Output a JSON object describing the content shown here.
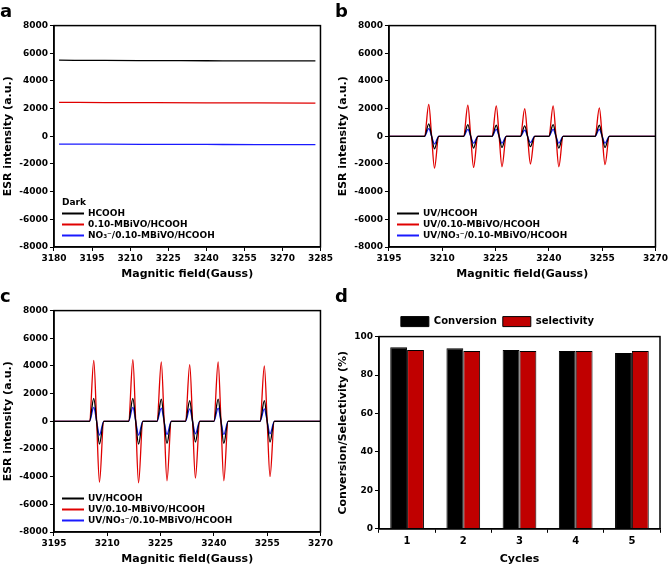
{
  "chart_data": [
    {
      "type": "line",
      "title": "a",
      "x_label": "Magnitic field(Gauss)",
      "y_label": "ESR intensity (a.u.)",
      "legend_title": "Dark",
      "legend": "lower left",
      "grid": false,
      "xlim": [
        3180,
        3285
      ],
      "xticks": [
        3180,
        3195,
        3210,
        3225,
        3240,
        3255,
        3270,
        3285
      ],
      "ylim": [
        -8000,
        8000
      ],
      "yticks": [
        -8000,
        -6000,
        -4000,
        -2000,
        0,
        2000,
        4000,
        6000,
        8000
      ],
      "x": [
        3182,
        3200,
        3220,
        3240,
        3260,
        3283
      ],
      "series": [
        {
          "name": "HCOOH",
          "color": "#000000",
          "values": [
            5500,
            5480,
            5470,
            5460,
            5450,
            5450
          ]
        },
        {
          "name": "0.10-MBiVO/HCOOH",
          "color": "#e00000",
          "values": [
            2450,
            2440,
            2430,
            2420,
            2410,
            2400
          ]
        },
        {
          "name": "NO₃⁻/0.10-MBiVO/HCOOH",
          "color": "#1a1aff",
          "values": [
            -560,
            -570,
            -580,
            -590,
            -600,
            -600
          ]
        }
      ]
    },
    {
      "type": "line",
      "title": "b",
      "x_label": "Magnitic field(Gauss)",
      "y_label": "ESR intensity (a.u.)",
      "legend": "lower left",
      "grid": false,
      "xlim": [
        3195,
        3270
      ],
      "xticks": [
        3195,
        3210,
        3225,
        3240,
        3255,
        3270
      ],
      "ylim": [
        -8000,
        8000
      ],
      "yticks": [
        -8000,
        -6000,
        -4000,
        -2000,
        0,
        2000,
        4000,
        6000,
        8000
      ],
      "x": [
        3195,
        3205,
        3206.2,
        3207,
        3207.8,
        3209,
        3216,
        3217.2,
        3218,
        3218.8,
        3220,
        3224,
        3225.2,
        3226,
        3226.8,
        3228,
        3232,
        3233.2,
        3234,
        3234.8,
        3236,
        3240,
        3241.2,
        3242,
        3242.8,
        3244,
        3253,
        3254.2,
        3255,
        3255.8,
        3257,
        3270
      ],
      "series": [
        {
          "name": "UV/HCOOH",
          "color": "#000000",
          "values": [
            0,
            0,
            900,
            0,
            -900,
            0,
            0,
            850,
            0,
            -850,
            0,
            0,
            800,
            0,
            -800,
            0,
            0,
            750,
            0,
            -750,
            0,
            0,
            850,
            0,
            -850,
            0,
            0,
            800,
            0,
            -800,
            0,
            0
          ]
        },
        {
          "name": "UV/0.10-MBiVO/HCOOH",
          "color": "#e00000",
          "values": [
            0,
            0,
            2300,
            0,
            -2300,
            0,
            0,
            2250,
            0,
            -2250,
            0,
            0,
            2200,
            0,
            -2200,
            0,
            0,
            2000,
            0,
            -2000,
            0,
            0,
            2200,
            0,
            -2200,
            0,
            0,
            2050,
            0,
            -2050,
            0,
            0
          ]
        },
        {
          "name": "UV/NO₃⁻/0.10-MBiVO/HCOOH",
          "color": "#1a1aff",
          "values": [
            0,
            0,
            550,
            0,
            -550,
            0,
            0,
            500,
            0,
            -500,
            0,
            0,
            500,
            0,
            -500,
            0,
            0,
            450,
            0,
            -450,
            0,
            0,
            500,
            0,
            -500,
            0,
            0,
            500,
            0,
            -500,
            0,
            0
          ]
        }
      ]
    },
    {
      "type": "line",
      "title": "c",
      "x_label": "Magnitic field(Gauss)",
      "y_label": "ESR intensity (a.u.)",
      "legend": "lower left",
      "grid": false,
      "xlim": [
        3195,
        3270
      ],
      "xticks": [
        3195,
        3210,
        3225,
        3240,
        3255,
        3270
      ],
      "ylim": [
        -8000,
        8000
      ],
      "yticks": [
        -8000,
        -6000,
        -4000,
        -2000,
        0,
        2000,
        4000,
        6000,
        8000
      ],
      "x": [
        3195,
        3205,
        3206.2,
        3207,
        3207.8,
        3209,
        3216,
        3217.2,
        3218,
        3218.8,
        3220,
        3224,
        3225.2,
        3226,
        3226.8,
        3228,
        3232,
        3233.2,
        3234,
        3234.8,
        3236,
        3240,
        3241.2,
        3242,
        3242.8,
        3244,
        3253,
        3254.2,
        3255,
        3255.8,
        3257,
        3270
      ],
      "series": [
        {
          "name": "UV/HCOOH",
          "color": "#000000",
          "values": [
            0,
            0,
            1650,
            0,
            -1650,
            0,
            0,
            1650,
            0,
            -1650,
            0,
            0,
            1600,
            0,
            -1600,
            0,
            0,
            1500,
            0,
            -1500,
            0,
            0,
            1600,
            0,
            -1600,
            0,
            0,
            1500,
            0,
            -1500,
            0,
            0
          ]
        },
        {
          "name": "UV/0.10-MBiVO/HCOOH",
          "color": "#e00000",
          "values": [
            0,
            0,
            4400,
            0,
            -4400,
            0,
            0,
            4450,
            0,
            -4450,
            0,
            0,
            4300,
            0,
            -4300,
            0,
            0,
            4100,
            0,
            -4100,
            0,
            0,
            4300,
            0,
            -4300,
            0,
            0,
            4000,
            0,
            -4000,
            0,
            0
          ]
        },
        {
          "name": "UV/NO₃⁻/0.10-MBiVO/HCOOH",
          "color": "#1a1aff",
          "values": [
            0,
            0,
            1000,
            0,
            -1000,
            0,
            0,
            1000,
            0,
            -1000,
            0,
            0,
            950,
            0,
            -950,
            0,
            0,
            900,
            0,
            -900,
            0,
            0,
            950,
            0,
            -950,
            0,
            0,
            900,
            0,
            -900,
            0,
            0
          ]
        }
      ]
    },
    {
      "type": "bar",
      "title": "d",
      "x_label": "Cycles",
      "y_label": "Conversion/Selectivity (%)",
      "legend": "top",
      "grid": false,
      "categories": [
        "1",
        "2",
        "3",
        "4",
        "5"
      ],
      "ylim": [
        0,
        100
      ],
      "yticks": [
        0,
        20,
        40,
        60,
        80,
        100
      ],
      "series": [
        {
          "name": "Conversion",
          "color": "#000000",
          "values": [
            94.5,
            94,
            93,
            92.5,
            91.5
          ]
        },
        {
          "name": "selectivity",
          "color": "#c00000",
          "values": [
            93,
            92.5,
            92.5,
            92.5,
            92.5
          ]
        }
      ]
    }
  ]
}
